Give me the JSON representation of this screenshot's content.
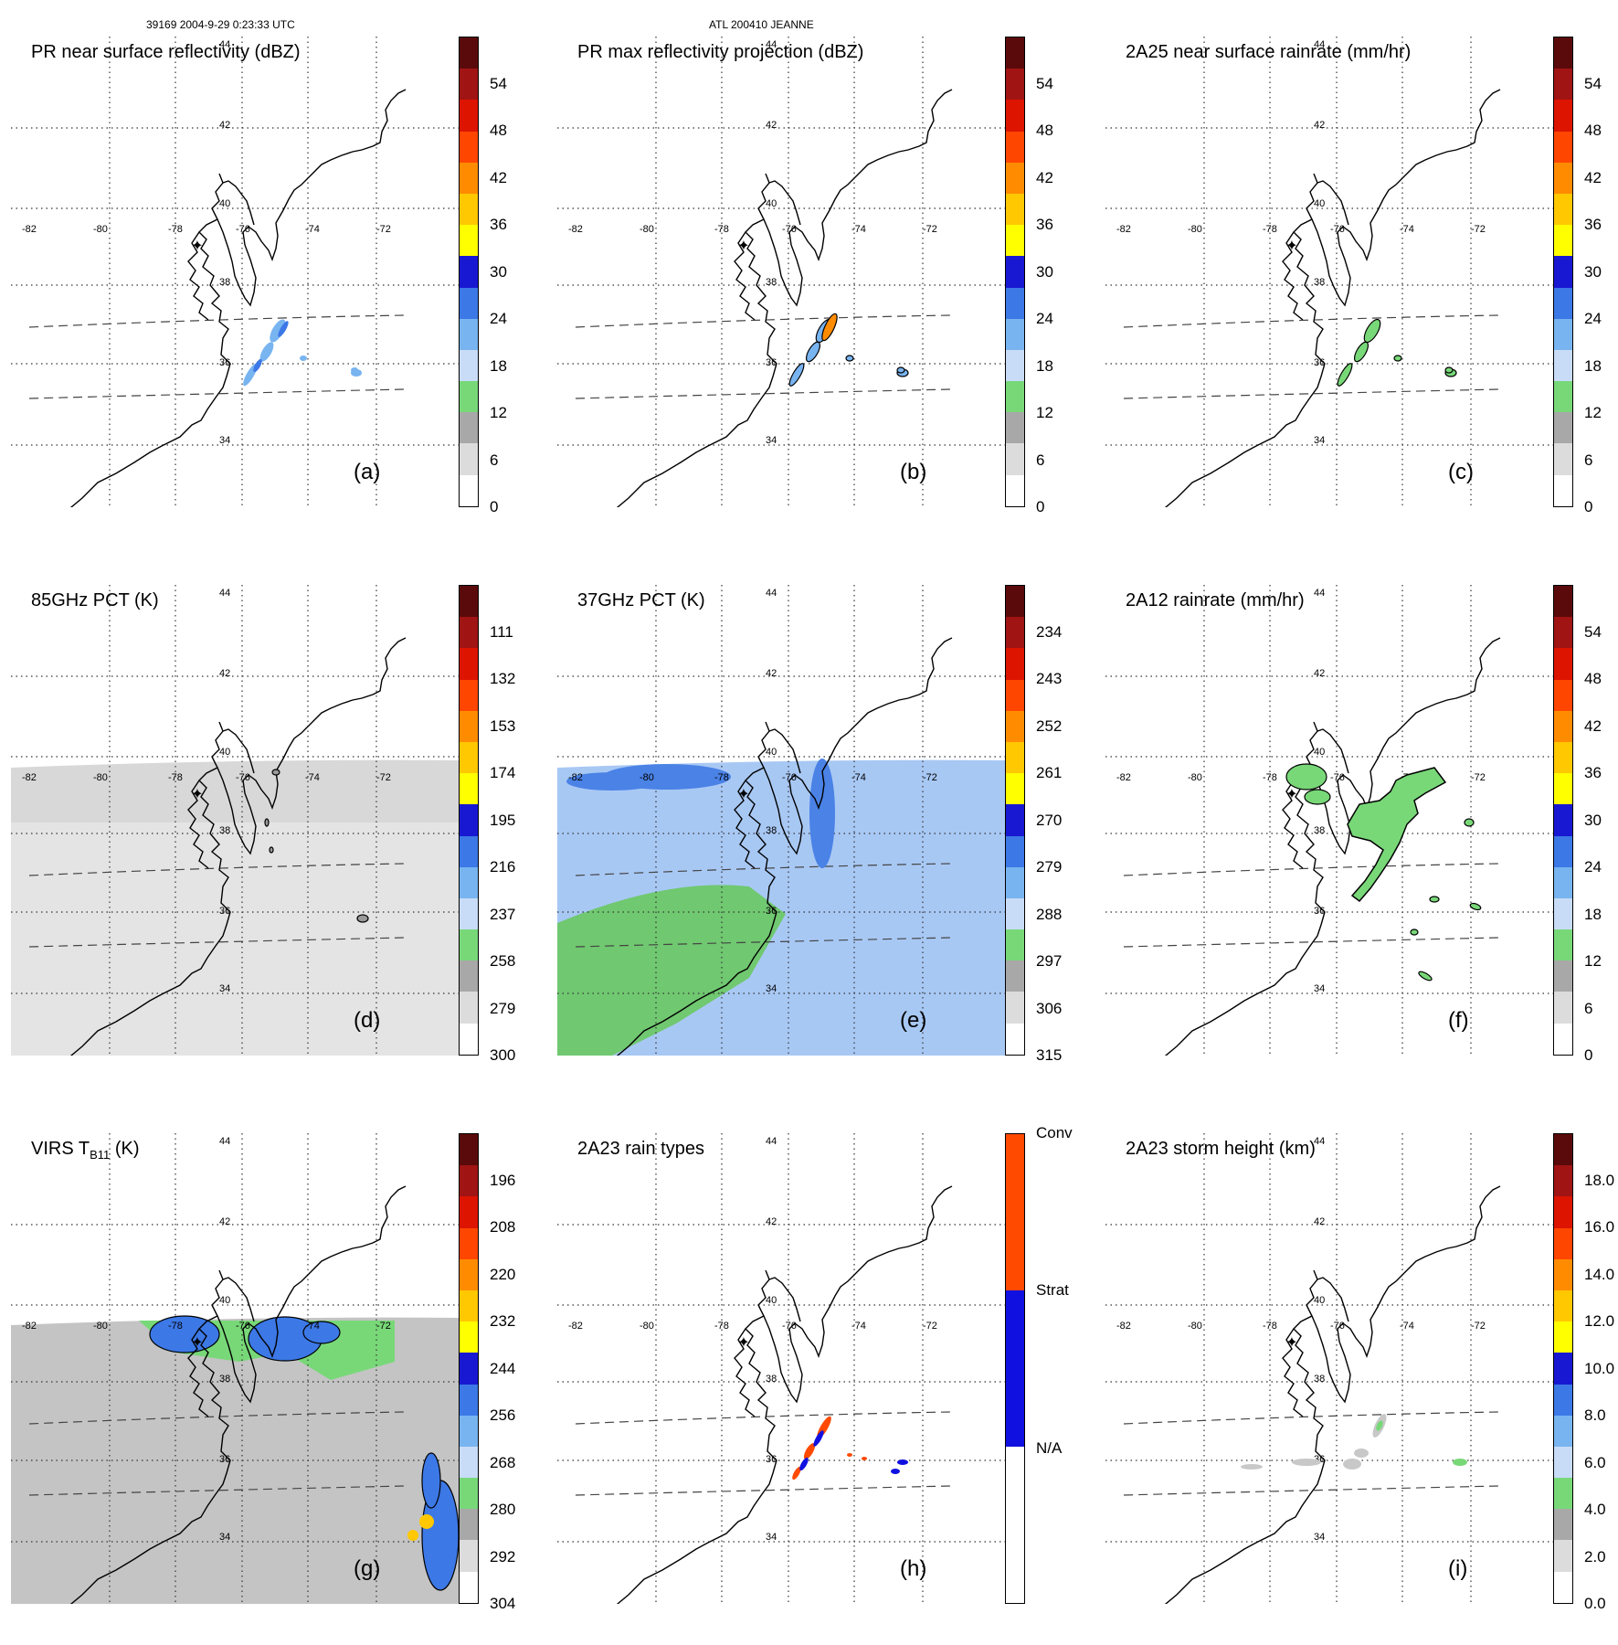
{
  "header": {
    "orbit_info": "39169 2004-9-29 0:23:33 UTC",
    "storm_info": "ATL 200410 JEANNE"
  },
  "map": {
    "lon_labels": [
      "-82",
      "-80",
      "-78",
      "-76",
      "-74",
      "-72"
    ],
    "lat_labels": [
      "34",
      "36",
      "38",
      "40",
      "42",
      "44"
    ]
  },
  "panels": [
    {
      "id": "a",
      "label": "(a)",
      "title": "PR near surface reflectivity (dBZ)",
      "colorbar_ticks": [
        "0",
        "6",
        "12",
        "18",
        "24",
        "30",
        "36",
        "42",
        "48",
        "54"
      ],
      "field": "pr_nsr"
    },
    {
      "id": "b",
      "label": "(b)",
      "title": "PR max reflectivity projection (dBZ)",
      "colorbar_ticks": [
        "0",
        "6",
        "12",
        "18",
        "24",
        "30",
        "36",
        "42",
        "48",
        "54"
      ],
      "field": "pr_max"
    },
    {
      "id": "c",
      "label": "(c)",
      "title": "2A25 near surface rainrate (mm/hr)",
      "colorbar_ticks": [
        "0",
        "6",
        "12",
        "18",
        "24",
        "30",
        "36",
        "42",
        "48",
        "54"
      ],
      "field": "rain_2a25"
    },
    {
      "id": "d",
      "label": "(d)",
      "title": "85GHz PCT (K)",
      "colorbar_ticks": [
        "300",
        "279",
        "258",
        "237",
        "216",
        "195",
        "174",
        "153",
        "132",
        "111"
      ],
      "field": "pct85"
    },
    {
      "id": "e",
      "label": "(e)",
      "title": "37GHz PCT (K)",
      "colorbar_ticks": [
        "315",
        "306",
        "297",
        "288",
        "279",
        "270",
        "261",
        "252",
        "243",
        "234"
      ],
      "field": "pct37"
    },
    {
      "id": "f",
      "label": "(f)",
      "title": "2A12 rainrate (mm/hr)",
      "colorbar_ticks": [
        "0",
        "6",
        "12",
        "18",
        "24",
        "30",
        "36",
        "42",
        "48",
        "54"
      ],
      "field": "rain_2a12"
    },
    {
      "id": "g",
      "label": "(g)",
      "title_main": "VIRS T",
      "title_sub": "B11",
      "title_end": " (K)",
      "colorbar_ticks": [
        "304",
        "292",
        "280",
        "268",
        "256",
        "244",
        "232",
        "220",
        "208",
        "196"
      ],
      "field": "virs"
    },
    {
      "id": "h",
      "label": "(h)",
      "title": "2A23 rain types",
      "colorbar_ticks": [
        "N/A",
        "Strat",
        "Conv"
      ],
      "field": "raintype"
    },
    {
      "id": "i",
      "label": "(i)",
      "title": "2A23 storm height (km)",
      "colorbar_ticks": [
        "0.0",
        "2.0",
        "4.0",
        "6.0",
        "8.0",
        "10.0",
        "12.0",
        "14.0",
        "16.0",
        "18.0"
      ],
      "field": "height"
    }
  ],
  "colors": {
    "scale": [
      "#ffffff",
      "#dcdcdc",
      "#a8a8a8",
      "#78d878",
      "#c8dcf8",
      "#78b4f0",
      "#3c78e6",
      "#1818d2",
      "#ffff00",
      "#ffc800",
      "#ff8c00",
      "#ff4600",
      "#dc1400",
      "#a01414",
      "#5a0a0a"
    ],
    "raintype": [
      "#ffffff",
      "#1010e0",
      "#ff4a00"
    ]
  }
}
